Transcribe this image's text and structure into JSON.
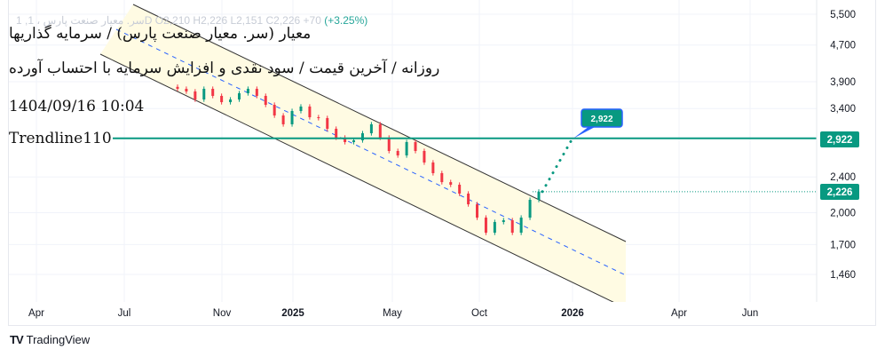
{
  "legend": {
    "symbol": "1 ,سر. معیار صنعت پارس ، 1D",
    "ohlc": "O2,210  H2,226  L2,151  C2,226  +70",
    "change": "(+3.25%)"
  },
  "titles": {
    "line1": "معیار  (سر. معیار صنعت پارس) / سرمایه گذاریها",
    "line2": "روزانه / آخرین قیمت / سود نقدی و افزایش سرمایه با احتساب آورده",
    "datetime": "1404/09/16 10:04",
    "trendline": "Trendline110"
  },
  "colors": {
    "up": "#089981",
    "down": "#f23645",
    "channel_fill": "#fffbe3",
    "channel_line": "#333333",
    "midline": "#2962ff",
    "callout_border": "#2962ff"
  },
  "chart_data": {
    "type": "candlestick",
    "y_scale": "log",
    "ylim": [
      1350,
      5700
    ],
    "grid": true,
    "y_ticks": [
      "5,500",
      "4,700",
      "3,900",
      "3,400",
      "2,400",
      "2,000",
      "1,700",
      "1,460"
    ],
    "y_tick_values": [
      5500,
      4700,
      3900,
      3400,
      2400,
      2000,
      1700,
      1460
    ],
    "x_ticks": [
      {
        "label": "Apr",
        "bold": false
      },
      {
        "label": "Jul",
        "bold": false
      },
      {
        "label": "Nov",
        "bold": false
      },
      {
        "label": "2025",
        "bold": true
      },
      {
        "label": "May",
        "bold": false
      },
      {
        "label": "Oct",
        "bold": false
      },
      {
        "label": "2026",
        "bold": true
      },
      {
        "label": "Apr",
        "bold": false
      },
      {
        "label": "Jun",
        "bold": false
      }
    ],
    "closes": [
      3760,
      3710,
      3561,
      3760,
      3627,
      3513,
      3561,
      3676,
      3760,
      3627,
      3466,
      3282,
      3138,
      3358,
      3435,
      3253,
      3239,
      3067,
      2932,
      2866,
      2892,
      2998,
      3138,
      2932,
      2739,
      2678,
      2866,
      2739,
      2583,
      2446,
      2337,
      2306,
      2204,
      2087,
      1950,
      1806,
      1907,
      1924,
      1806,
      1950,
      2135,
      2226
    ],
    "last_price": 2226,
    "last_price_label": "2,226",
    "trendline_price": 2922,
    "trendline_label": "2,922",
    "target_callout": "2,922"
  },
  "footer": {
    "brand": "TradingView"
  }
}
